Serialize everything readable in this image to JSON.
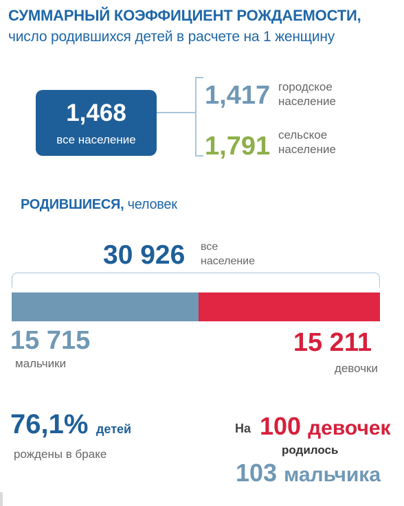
{
  "fertility": {
    "title": "СУММАРНЫЙ КОЭФФИЦИЕНТ РОЖДАЕМОСТИ,",
    "subtitle": "число родившихся детей в расчете на 1 женщину",
    "total": {
      "value": "1,468",
      "label": "все население"
    },
    "urban": {
      "value": "1,417",
      "label_line1": "городское",
      "label_line2": "население"
    },
    "rural": {
      "value": "1,791",
      "label_line1": "сельское",
      "label_line2": "население"
    }
  },
  "births": {
    "title_bold": "РОДИВШИЕСЯ,",
    "title_normal": " человек",
    "total": {
      "value": "30 926",
      "label_line1": "все",
      "label_line2": "население"
    },
    "boys": {
      "value": "15 715",
      "label": "мальчики",
      "count": 15715
    },
    "girls": {
      "value": "15 211",
      "label": "девочки",
      "count": 15211
    }
  },
  "stats": {
    "married": {
      "value": "76,1%",
      "word": "детей",
      "label": "рождены в браке"
    },
    "ratio": {
      "prefix": "На",
      "girls_number": "100",
      "girls_word": "девочек",
      "born": "родилось",
      "boys_number": "103",
      "boys_word": "мальчика"
    }
  },
  "colors": {
    "primary_blue": "#1f5f99",
    "light_blue": "#6f98b5",
    "green": "#8db04a",
    "red": "#e02643"
  }
}
